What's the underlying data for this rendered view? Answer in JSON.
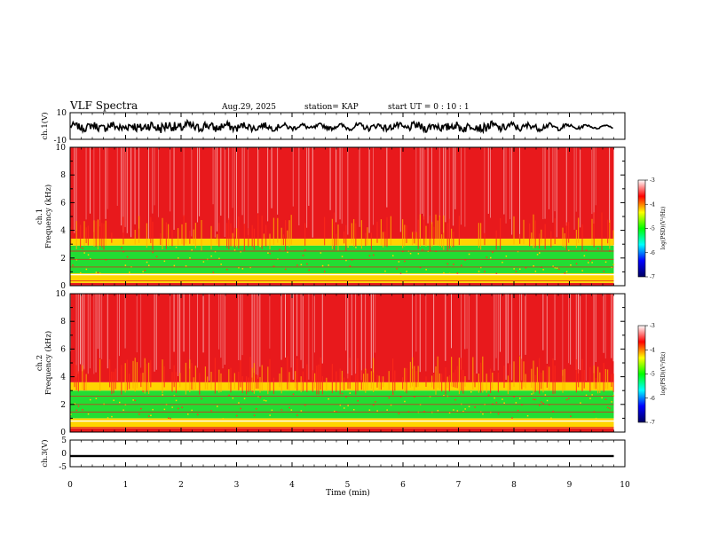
{
  "header": {
    "title": "VLF Spectra",
    "date": "Aug.29, 2025",
    "station": "station= KAP",
    "start_time": "start  UT =   0  : 10 : 1"
  },
  "colors": {
    "waveform": "#000000",
    "spectrum_high": "#e8191c",
    "spectrum_mid": "#ffd400",
    "spectrum_low": "#22dd33"
  },
  "chart_data": [
    {
      "type": "line",
      "name": "ch.1 waveform",
      "ylabel": "ch.1(V)",
      "ylim": [
        -10,
        10
      ],
      "ytick_labels": [
        "10",
        "-10"
      ],
      "xlim": [
        0,
        9.8
      ],
      "envelope": "dense oscillation, amplitude about 3 V"
    },
    {
      "type": "heatmap",
      "name": "ch.1 spectrogram",
      "ylabel": [
        "ch.1",
        "Frequency  (kHz)"
      ],
      "ylim": [
        0,
        10
      ],
      "ytick_labels": [
        "0",
        "2",
        "4",
        "6",
        "8",
        "10"
      ],
      "xlim": [
        0,
        9.8
      ],
      "bands": [
        {
          "from": 0.0,
          "to": 0.2,
          "level": "high"
        },
        {
          "from": 0.2,
          "to": 0.9,
          "level": "mid"
        },
        {
          "from": 0.9,
          "to": 2.9,
          "level": "low"
        },
        {
          "from": 2.9,
          "to": 3.4,
          "level": "mid"
        },
        {
          "from": 3.4,
          "to": 10.0,
          "level": "high"
        }
      ],
      "colorbar": {
        "label": "log(PSD)(V²/Hz)",
        "range": [
          -7,
          -3
        ],
        "tick_labels": [
          "-3",
          "-4",
          "-5",
          "-6",
          "-7"
        ],
        "colors": [
          "#ffffff",
          "#ff0000",
          "#ffff00",
          "#00ff00",
          "#00ffff",
          "#0000ff",
          "#000060"
        ]
      }
    },
    {
      "type": "heatmap",
      "name": "ch.2 spectrogram",
      "ylabel": [
        "ch.2",
        "Frequency  (kHz)"
      ],
      "ylim": [
        0,
        10
      ],
      "ytick_labels": [
        "0",
        "2",
        "4",
        "6",
        "8",
        "10"
      ],
      "xlim": [
        0,
        9.8
      ],
      "bands": [
        {
          "from": 0.0,
          "to": 0.3,
          "level": "high"
        },
        {
          "from": 0.3,
          "to": 1.0,
          "level": "mid"
        },
        {
          "from": 1.0,
          "to": 3.0,
          "level": "low"
        },
        {
          "from": 3.0,
          "to": 3.6,
          "level": "mid"
        },
        {
          "from": 3.6,
          "to": 10.0,
          "level": "high"
        }
      ],
      "colorbar": {
        "label": "log(PSD)(V²/Hz)",
        "range": [
          -7,
          -3
        ],
        "tick_labels": [
          "-3",
          "-4",
          "-5",
          "-6",
          "-7"
        ],
        "colors": [
          "#ffffff",
          "#ff0000",
          "#ffff00",
          "#00ff00",
          "#00ffff",
          "#0000ff",
          "#000060"
        ]
      }
    },
    {
      "type": "line",
      "name": "ch.3 waveform",
      "ylabel": "ch.3(V)",
      "ylim": [
        -5,
        5
      ],
      "ytick_labels": [
        "5",
        "0",
        "-5"
      ],
      "xlim": [
        0,
        9.8
      ],
      "level": -1,
      "amplitude": 0.4
    }
  ],
  "xaxis": {
    "label": "Time  (min)",
    "range": [
      0,
      10
    ],
    "tick_labels": [
      "0",
      "1",
      "2",
      "3",
      "4",
      "5",
      "6",
      "7",
      "8",
      "9",
      "10"
    ]
  }
}
